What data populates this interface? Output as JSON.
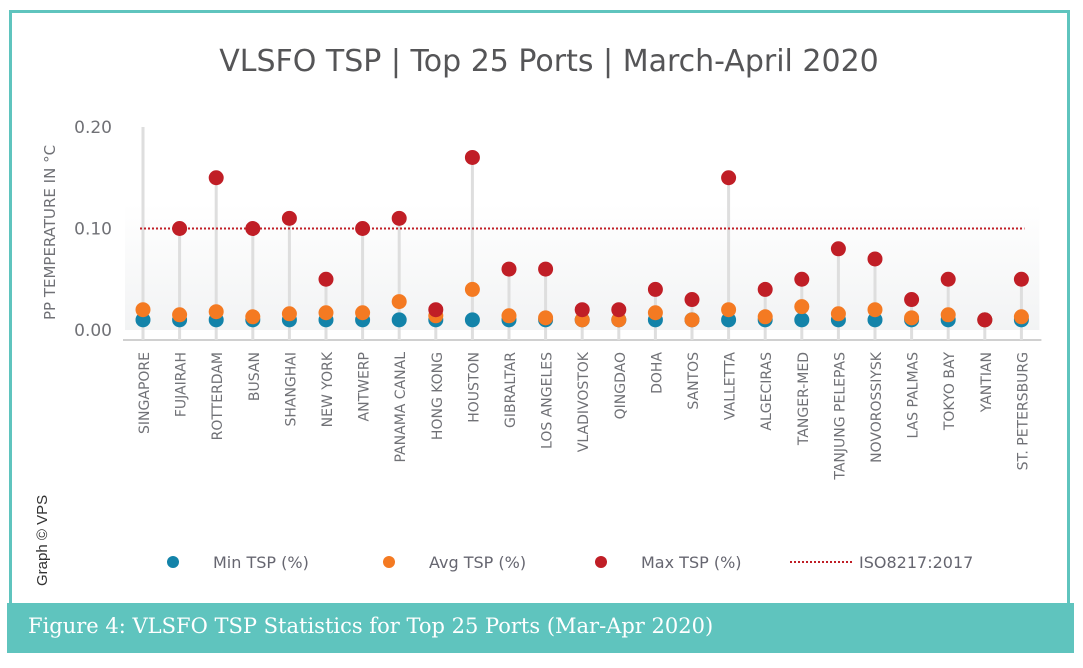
{
  "title": "VLSFO TSP | Top 25 Ports | March-April 2020",
  "caption": "Figure 4: VLSFO TSP Statistics for Top 25 Ports (Mar-Apr 2020)",
  "credit": "Graph © VPS",
  "colors": {
    "frame": "#5fc4be",
    "min": "#1383a9",
    "avg": "#f47a22",
    "max": "#c01e26",
    "iso": "#c01e26",
    "stem": "#dedede",
    "text": "#707176"
  },
  "chart_data": {
    "type": "scatter",
    "title": "VLSFO TSP | Top 25 Ports | March-April 2020",
    "xlabel": "",
    "ylabel": "PP TEMPERATURE IN °C",
    "ylim": [
      0,
      0.2
    ],
    "yticks": [
      "0.00",
      "0.10",
      "0.20"
    ],
    "ytick_values": [
      0,
      0.1,
      0.2
    ],
    "grid": false,
    "legend_position": "bottom",
    "categories": [
      "SINGAPORE",
      "FUJAIRAH",
      "ROTTERDAM",
      "BUSAN",
      "SHANGHAI",
      "NEW YORK",
      "ANTWERP",
      "PANAMA CANAL",
      "HONG KONG",
      "HOUSTON",
      "GIBRALTAR",
      "LOS ANGELES",
      "VLADIVOSTOK",
      "QINGDAO",
      "DOHA",
      "SANTOS",
      "VALLETTA",
      "ALGECIRAS",
      "TANGER-MED",
      "TANJUNG PELEPAS",
      "NOVOROSSIYSK",
      "LAS PALMAS",
      "TOKYO BAY",
      "YANTIAN",
      "ST. PETERSBURG"
    ],
    "series": [
      {
        "name": "Min TSP (%)",
        "key": "min",
        "values": [
          0.01,
          0.01,
          0.01,
          0.01,
          0.01,
          0.01,
          0.01,
          0.01,
          0.01,
          0.01,
          0.01,
          0.01,
          0.01,
          0.01,
          0.01,
          0.01,
          0.01,
          0.01,
          0.01,
          0.01,
          0.01,
          0.01,
          0.01,
          0.01,
          0.01
        ]
      },
      {
        "name": "Avg TSP (%)",
        "key": "avg",
        "values": [
          0.02,
          0.015,
          0.018,
          0.013,
          0.016,
          0.017,
          0.017,
          0.028,
          0.014,
          0.04,
          0.014,
          0.012,
          0.01,
          0.01,
          0.017,
          0.01,
          0.02,
          0.013,
          0.023,
          0.016,
          0.02,
          0.012,
          0.015,
          0.01,
          0.013
        ]
      },
      {
        "name": "Max TSP (%)",
        "key": "max",
        "values": [
          null,
          0.1,
          0.15,
          0.1,
          0.11,
          0.05,
          0.1,
          0.11,
          0.02,
          0.17,
          0.06,
          0.06,
          0.02,
          0.02,
          0.04,
          0.03,
          0.15,
          0.04,
          0.05,
          0.08,
          0.07,
          0.03,
          0.05,
          0.01,
          0.05
        ]
      }
    ],
    "reference_line": {
      "name": "ISO8217:2017",
      "value": 0.1
    }
  },
  "legend": [
    {
      "key": "min",
      "label": "Min TSP (%)"
    },
    {
      "key": "avg",
      "label": "Avg TSP (%)"
    },
    {
      "key": "max",
      "label": "Max TSP (%)"
    },
    {
      "key": "iso",
      "label": "ISO8217:2017"
    }
  ]
}
